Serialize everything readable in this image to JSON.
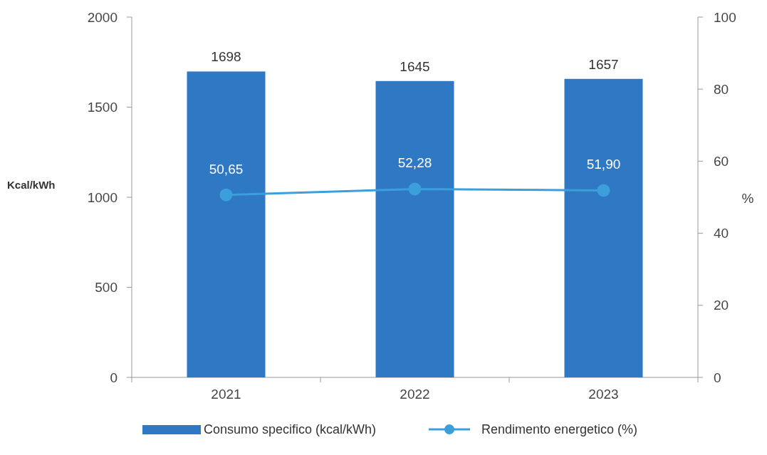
{
  "chart_data": {
    "type": "bar",
    "categories": [
      "2021",
      "2022",
      "2023"
    ],
    "ylabel": "Kcal/kWh",
    "y2label": "%",
    "ylim": [
      0,
      2000
    ],
    "yticks": [
      0,
      500,
      1000,
      1500,
      2000
    ],
    "y2lim": [
      0,
      100
    ],
    "y2ticks": [
      0,
      20,
      40,
      60,
      80,
      100
    ],
    "series": [
      {
        "name": "Consumo specifico (kcal/kWh)",
        "color": "#2f78c4",
        "values": [
          1698,
          1645,
          1657
        ],
        "value_labels": [
          "1698",
          "1645",
          "1657"
        ]
      },
      {
        "name": "Rendimento energetico (%)",
        "type": "line",
        "axis": "y2",
        "color": "#3b9fdc",
        "values": [
          50.65,
          52.28,
          51.9
        ],
        "value_labels": [
          "50,65",
          "52,28",
          "51,90"
        ]
      }
    ],
    "grid": false,
    "legend": "bottom",
    "marker": "circle"
  }
}
